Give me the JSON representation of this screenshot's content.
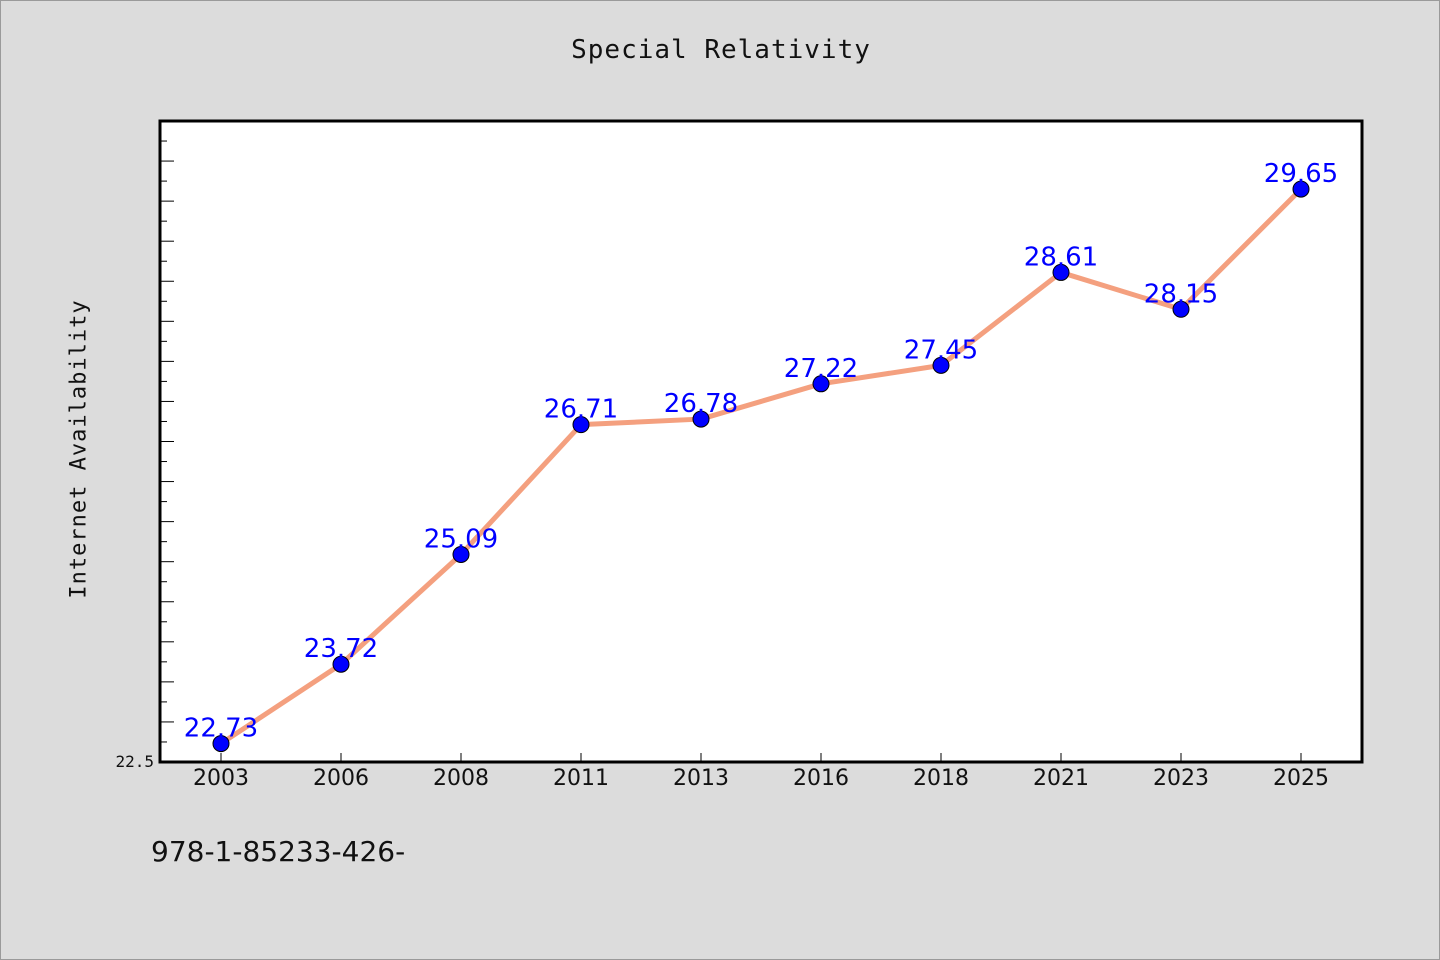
{
  "footer": {
    "code": "978-1-85233-426-"
  },
  "chart_data": {
    "type": "line",
    "title": "Special Relativity",
    "xlabel": "",
    "ylabel": "Internet Availability",
    "categories": [
      "2003",
      "2006",
      "2008",
      "2011",
      "2013",
      "2016",
      "2018",
      "2021",
      "2023",
      "2025"
    ],
    "series": [
      {
        "values": [
          22.73,
          23.72,
          25.09,
          26.71,
          26.78,
          27.22,
          27.45,
          28.61,
          28.15,
          29.65
        ],
        "line_color": "#f4a07f",
        "marker_color": "#0000ff"
      }
    ],
    "ylim": [
      22.5,
      30.5
    ],
    "y_tick_labels": [
      "22.5"
    ],
    "grid": false,
    "legend": "none",
    "data_labels": true,
    "plot_background": "#ffffff",
    "figure_background": "#dcdcdc"
  }
}
